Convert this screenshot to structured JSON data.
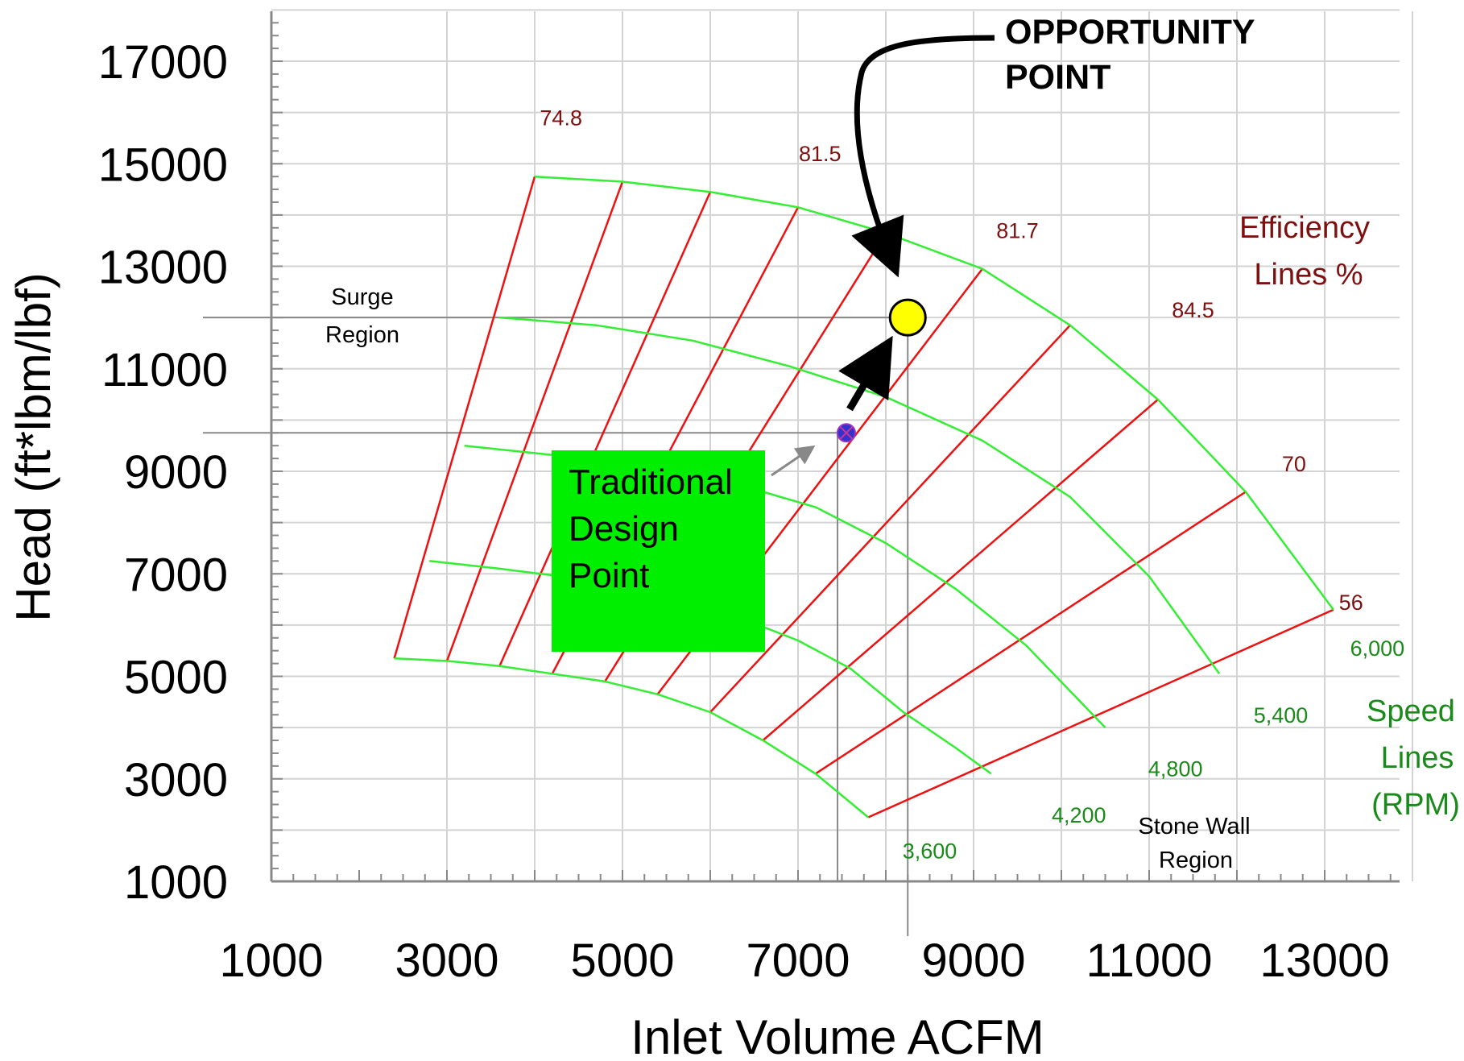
{
  "chart_data": {
    "type": "line",
    "xlabel": "Inlet Volume  ACFM",
    "ylabel": "Head (ft*lbm/lbf)",
    "xlim": [
      1000,
      14000
    ],
    "ylim": [
      1000,
      18000
    ],
    "x_ticks": [
      "1000",
      "3000",
      "5000",
      "7000",
      "9000",
      "11000",
      "13000"
    ],
    "y_ticks": [
      "1000",
      "3000",
      "5000",
      "7000",
      "9000",
      "11000",
      "13000",
      "15000",
      "17000"
    ],
    "grid": true,
    "colors": {
      "speed_line": "#33ee33",
      "efficiency_line": "#ee1111",
      "eff_text": "#7f1010",
      "speed_text": "#1a8a1a",
      "opportunity_fill": "#ffff00",
      "design_box": "#00ee00",
      "design_marker": "#3333cc"
    },
    "speed_lines": [
      {
        "name": "3,600",
        "points": [
          [
            2400,
            5350
          ],
          [
            3000,
            5300
          ],
          [
            3600,
            5200
          ],
          [
            4200,
            5050
          ],
          [
            4800,
            4900
          ],
          [
            5400,
            4650
          ],
          [
            6000,
            4300
          ],
          [
            6600,
            3750
          ],
          [
            7200,
            3100
          ],
          [
            7800,
            2250
          ]
        ]
      },
      {
        "name": "4,200",
        "points": [
          [
            2800,
            7250
          ],
          [
            3600,
            7100
          ],
          [
            4300,
            6950
          ],
          [
            5000,
            6750
          ],
          [
            5700,
            6450
          ],
          [
            6400,
            6100
          ],
          [
            7000,
            5700
          ],
          [
            7600,
            5150
          ],
          [
            8200,
            4300
          ],
          [
            8800,
            3600
          ],
          [
            9200,
            3100
          ]
        ]
      },
      {
        "name": "4,800",
        "points": [
          [
            3200,
            9500
          ],
          [
            4300,
            9300
          ],
          [
            5300,
            9050
          ],
          [
            6300,
            8750
          ],
          [
            7200,
            8300
          ],
          [
            8000,
            7600
          ],
          [
            8800,
            6700
          ],
          [
            9600,
            5600
          ],
          [
            10500,
            4000
          ]
        ]
      },
      {
        "name": "5,400",
        "points": [
          [
            3600,
            12000
          ],
          [
            4700,
            11850
          ],
          [
            5800,
            11550
          ],
          [
            6900,
            11050
          ],
          [
            8000,
            10450
          ],
          [
            9100,
            9600
          ],
          [
            10100,
            8500
          ],
          [
            11000,
            6950
          ],
          [
            11800,
            5050
          ]
        ]
      },
      {
        "name": "6,000",
        "points": [
          [
            4000,
            14750
          ],
          [
            5000,
            14650
          ],
          [
            6000,
            14450
          ],
          [
            7000,
            14150
          ],
          [
            8000,
            13650
          ],
          [
            9100,
            12950
          ],
          [
            10100,
            11850
          ],
          [
            11100,
            10400
          ],
          [
            12100,
            8600
          ],
          [
            13100,
            6300
          ]
        ]
      }
    ],
    "efficiency_lines": [
      [
        [
          2400,
          5350
        ],
        [
          4000,
          14750
        ]
      ],
      [
        [
          3000,
          5300
        ],
        [
          5000,
          14650
        ]
      ],
      [
        [
          3600,
          5200
        ],
        [
          6000,
          14450
        ]
      ],
      [
        [
          4200,
          5050
        ],
        [
          7000,
          14150
        ]
      ],
      [
        [
          4800,
          4900
        ],
        [
          8000,
          13650
        ]
      ],
      [
        [
          5400,
          4650
        ],
        [
          9100,
          12950
        ]
      ],
      [
        [
          6000,
          4300
        ],
        [
          10100,
          11850
        ]
      ],
      [
        [
          6600,
          3750
        ],
        [
          11100,
          10400
        ]
      ],
      [
        [
          7200,
          3100
        ],
        [
          12100,
          8600
        ]
      ],
      [
        [
          7800,
          2250
        ],
        [
          13100,
          6300
        ]
      ]
    ],
    "efficiency_labels": [
      {
        "text": "74.8",
        "x": 4300,
        "y": 15750
      },
      {
        "text": "81.5",
        "x": 7250,
        "y": 15050
      },
      {
        "text": "81.7",
        "x": 9500,
        "y": 13550
      },
      {
        "text": "84.5",
        "x": 11500,
        "y": 12000
      },
      {
        "text": "70",
        "x": 12650,
        "y": 9000
      },
      {
        "text": "56",
        "x": 13300,
        "y": 6300
      }
    ],
    "speed_labels": [
      {
        "text": "6,000",
        "x": 13600,
        "y": 5400
      },
      {
        "text": "5,400",
        "x": 12500,
        "y": 4100
      },
      {
        "text": "4,800",
        "x": 11300,
        "y": 3050
      },
      {
        "text": "4,200",
        "x": 10200,
        "y": 2150
      },
      {
        "text": "3,600",
        "x": 8500,
        "y": 1450
      }
    ],
    "annotations": {
      "efficiency_legend": [
        "Efficiency",
        "Lines %"
      ],
      "speed_legend": [
        "Speed",
        "Lines",
        "(RPM)"
      ],
      "surge_region": [
        "Surge",
        "Region"
      ],
      "stonewall_region": [
        "Stone Wall",
        "Region"
      ],
      "opportunity_point": [
        "OPPORTUNITY",
        "POINT"
      ],
      "traditional_design_point": [
        "Traditional",
        "Design",
        "Point"
      ]
    },
    "opportunity_point": {
      "x": 8250,
      "y": 12000
    },
    "design_point": {
      "x": 7550,
      "y": 9750
    },
    "reference_lines": {
      "surge_head": 12000,
      "design_head": 9750,
      "design_volume": 7450,
      "opportunity_volume": 8250
    }
  }
}
